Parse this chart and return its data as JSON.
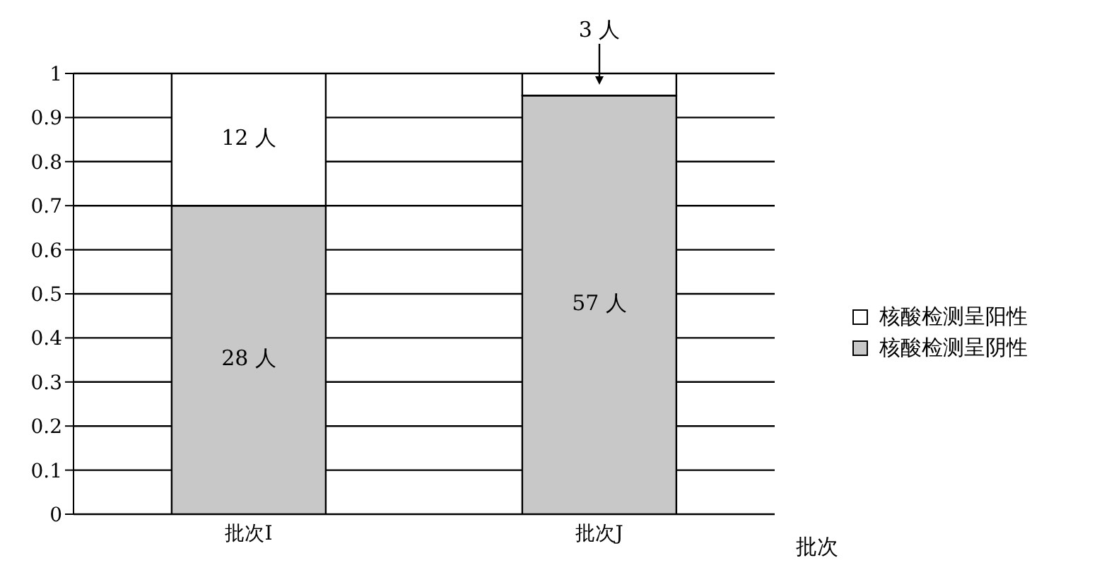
{
  "chart_data": {
    "type": "bar",
    "stacked": true,
    "categories": [
      "批次I",
      "批次J"
    ],
    "xlabel": "批次",
    "series": [
      {
        "name": "核酸检测呈阴性",
        "color": "#c8c8c8",
        "values": [
          0.7,
          0.95
        ]
      },
      {
        "name": "核酸检测呈阳性",
        "color": "#ffffff",
        "values": [
          0.3,
          0.05
        ]
      }
    ],
    "annotations": [
      "28 人",
      {
        "text": "12 人",
        "x": "批次I",
        "y": 1
      },
      "57 人",
      {
        "text": "3 人",
        "x": "批次J",
        "y": 1
      }
    ],
    "ylim": [
      0,
      1
    ],
    "yticks": [
      0,
      0.1,
      0.2,
      0.3,
      0.4,
      0.5,
      0.6,
      0.7,
      0.8,
      0.9,
      1
    ],
    "grid": "y",
    "legend": "right"
  }
}
